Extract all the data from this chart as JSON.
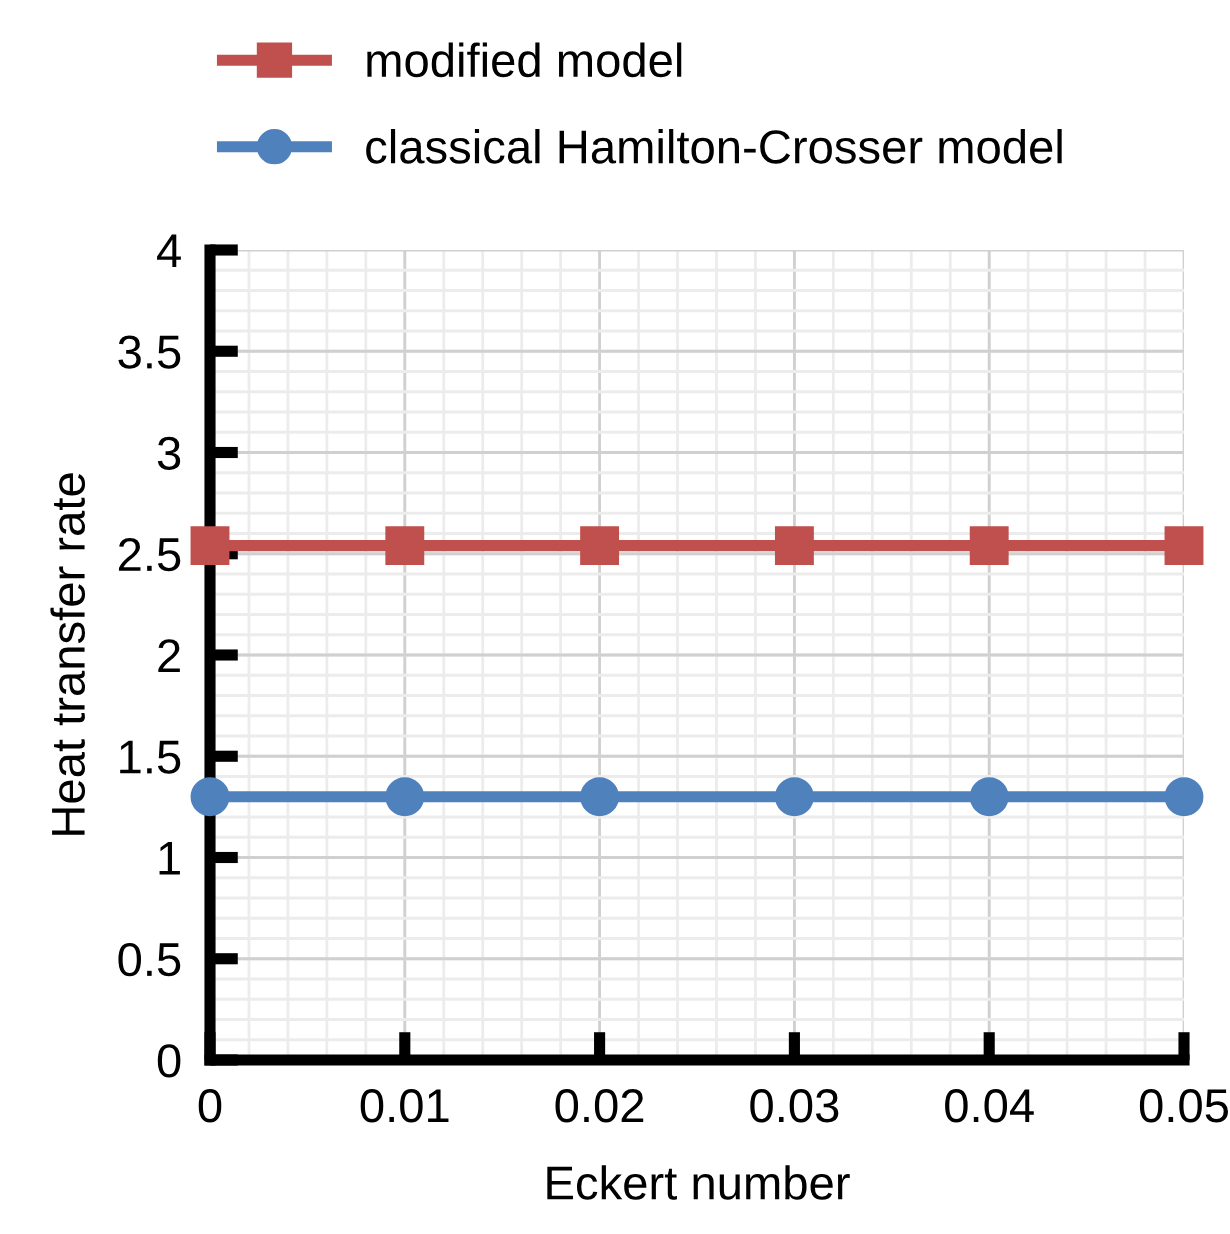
{
  "chart_data": {
    "type": "line",
    "xlabel": "Eckert number",
    "ylabel": "Heat transfer rate",
    "x": [
      0,
      0.01,
      0.02,
      0.03,
      0.04,
      0.05
    ],
    "series": [
      {
        "name": "modified model",
        "color": "#c0504d",
        "marker": "square",
        "values": [
          2.54,
          2.54,
          2.54,
          2.54,
          2.54,
          2.54
        ]
      },
      {
        "name": "classical Hamilton-Crosser model",
        "color": "#4f81bd",
        "marker": "circle",
        "values": [
          1.3,
          1.3,
          1.3,
          1.3,
          1.3,
          1.3
        ]
      }
    ],
    "xlim": [
      0,
      0.05
    ],
    "xticks": [
      0,
      0.01,
      0.02,
      0.03,
      0.04,
      0.05
    ],
    "ylim": [
      0,
      4
    ],
    "yticks": [
      0,
      0.5,
      1,
      1.5,
      2,
      2.5,
      3,
      3.5,
      4
    ],
    "grid": true,
    "legend": "top",
    "line_style": "solid"
  }
}
